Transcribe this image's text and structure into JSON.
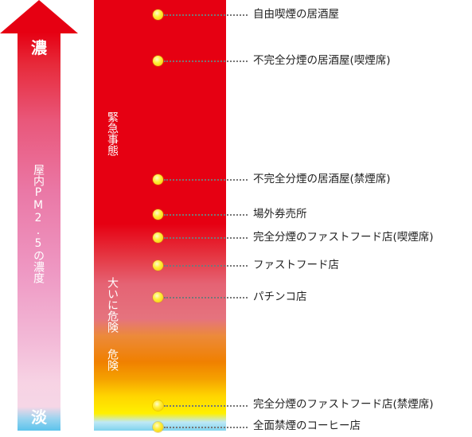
{
  "arrow": {
    "top_label": "濃",
    "bottom_label": "淡",
    "vertical_label": "屋内PM2.5の濃度"
  },
  "zones": {
    "emergency": "緊急事態",
    "very_danger": "大いに危険",
    "danger": "危険"
  },
  "places": [
    "自由喫煙の居酒屋",
    "不完全分煙の居酒屋(喫煙席)",
    "不完全分煙の居酒屋(禁煙席)",
    "場外券売所",
    "完全分煙のファストフード店(喫煙席)",
    "ファストフード店",
    "パチンコ店",
    "完全分煙のファストフード店(禁煙席)",
    "全面禁煙のコーヒー店"
  ],
  "colors": {
    "emergency_red": "#e60012",
    "danger_orange": "#f08000",
    "safe_yellow": "#fff000",
    "clean_blue": "#7fd3ee",
    "marker_yellow": "#ffef3a"
  }
}
